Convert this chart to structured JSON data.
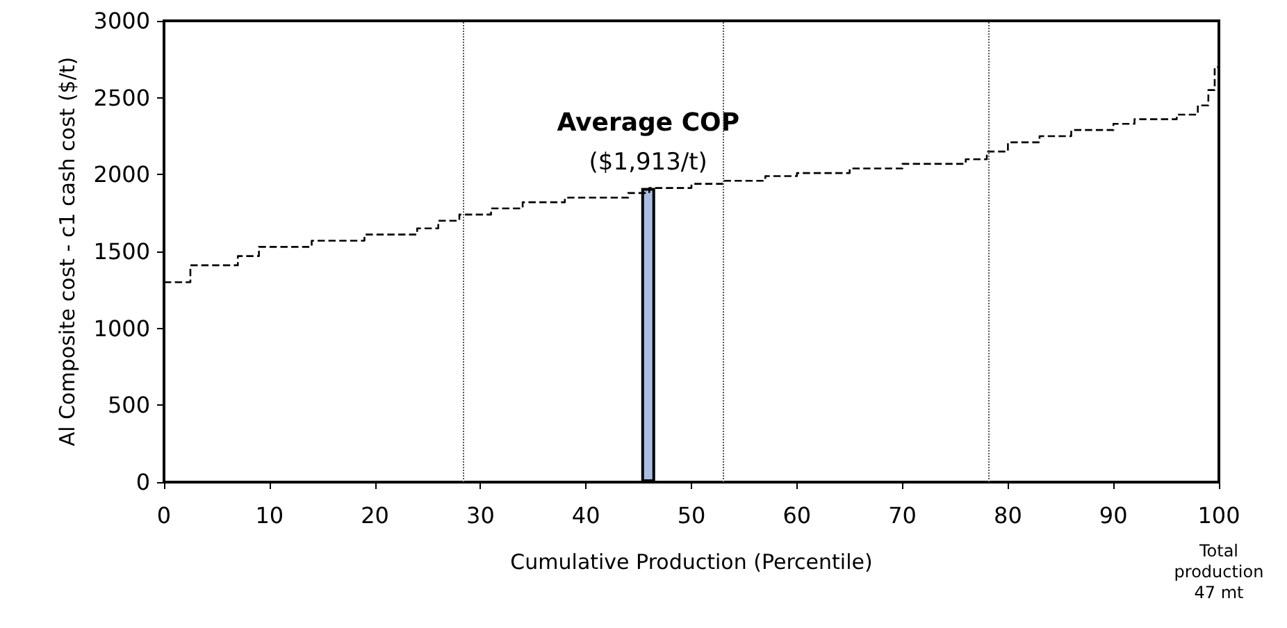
{
  "chart_data": {
    "type": "step",
    "xlabel": "Cumulative Production (Percentile)",
    "ylabel": "Al Composite cost - c1 cash cost ($/t)",
    "xlim": [
      0,
      100
    ],
    "xticks": [
      0,
      10,
      20,
      30,
      40,
      50,
      60,
      70,
      80,
      90,
      100
    ],
    "ylim": [
      0,
      3000
    ],
    "yticks": [
      0,
      500,
      1000,
      1500,
      2000,
      2500,
      3000
    ],
    "grid": false,
    "marker": "none",
    "series": [
      {
        "color": "#000000",
        "line_style": "dashed",
        "x": [
          0,
          2.5,
          7,
          9,
          14,
          19,
          24,
          26,
          28,
          31,
          34,
          38,
          44,
          46,
          50,
          53,
          57,
          60,
          65,
          70,
          76,
          78,
          80,
          83,
          86,
          90,
          92,
          96,
          98,
          99,
          99.6,
          100
        ],
        "values": [
          1300,
          1410,
          1470,
          1530,
          1570,
          1610,
          1650,
          1700,
          1740,
          1780,
          1820,
          1850,
          1880,
          1913,
          1940,
          1960,
          1990,
          2010,
          2040,
          2070,
          2100,
          2150,
          2210,
          2250,
          2290,
          2330,
          2360,
          2390,
          2450,
          2550,
          2700,
          3000
        ]
      },
      {
        "type": "bar",
        "color": "#a9bde3",
        "x": [
          45.9
        ],
        "values": [
          1913
        ]
      }
    ],
    "ref_lines": [
      {
        "axis": "x",
        "value": 28.3,
        "color": "#555555",
        "line_style": "dotted"
      },
      {
        "axis": "x",
        "value": 53,
        "color": "#555555",
        "line_style": "dotted"
      },
      {
        "axis": "x",
        "value": 78.2,
        "color": "#555555",
        "line_style": "dotted"
      }
    ],
    "annotations": [
      {
        "text": "Average COP",
        "x": 45.9,
        "y": 1913
      },
      {
        "text": "($1,913/t)",
        "x": 45.9,
        "y": 1913
      },
      "Total production 47 mt"
    ]
  }
}
